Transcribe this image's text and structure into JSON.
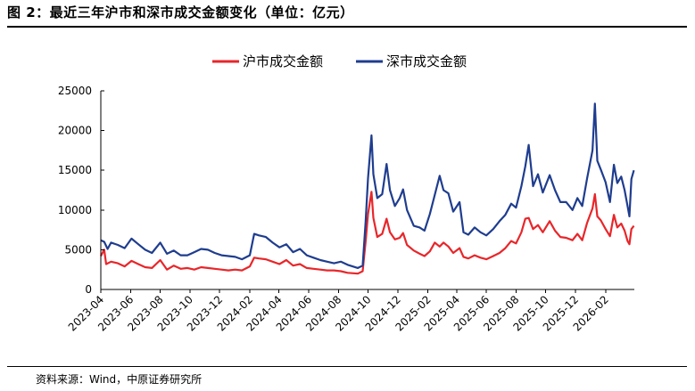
{
  "figure": {
    "title": "图 2：最近三年沪市和深市成交金额变化（单位：亿元）",
    "source": "资料来源：Wind，中原证券研究所"
  },
  "colors": {
    "sh": "#e8262a",
    "sz": "#1f3d8f",
    "axis": "#000000"
  },
  "chart_data": {
    "type": "line",
    "title": "",
    "xlabel": "",
    "ylabel": "",
    "ylim": [
      0,
      25000
    ],
    "yticks": [
      0,
      5000,
      10000,
      15000,
      20000,
      25000
    ],
    "xlim": [
      "2023-04-01",
      "2026-04-01"
    ],
    "x_tick_labels": [
      "2023-04",
      "2023-06",
      "2023-08",
      "2023-10",
      "2023-12",
      "2024-02",
      "2024-04",
      "2024-06",
      "2024-08",
      "2024-10",
      "2024-12",
      "2025-02",
      "2025-04",
      "2025-06",
      "2025-08",
      "2025-10",
      "2025-12",
      "2026-02"
    ],
    "legend": {
      "position": "top-center",
      "entries": [
        "沪市成交金额",
        "深市成交金额"
      ]
    },
    "grid": false,
    "series": [
      {
        "name": "沪市成交金额",
        "color": "#e8262a",
        "points": [
          [
            "2023-04-01",
            4200
          ],
          [
            "2023-04-08",
            5000
          ],
          [
            "2023-04-12",
            3200
          ],
          [
            "2023-04-22",
            3500
          ],
          [
            "2023-05-06",
            3300
          ],
          [
            "2023-05-20",
            2900
          ],
          [
            "2023-06-03",
            3600
          ],
          [
            "2023-06-17",
            3200
          ],
          [
            "2023-07-01",
            2800
          ],
          [
            "2023-07-15",
            2700
          ],
          [
            "2023-08-01",
            3700
          ],
          [
            "2023-08-15",
            2500
          ],
          [
            "2023-08-29",
            3000
          ],
          [
            "2023-09-12",
            2600
          ],
          [
            "2023-09-26",
            2700
          ],
          [
            "2023-10-10",
            2500
          ],
          [
            "2023-10-24",
            2800
          ],
          [
            "2023-11-07",
            2700
          ],
          [
            "2023-11-21",
            2600
          ],
          [
            "2023-12-05",
            2500
          ],
          [
            "2023-12-19",
            2400
          ],
          [
            "2024-01-02",
            2500
          ],
          [
            "2024-01-16",
            2400
          ],
          [
            "2024-02-01",
            2900
          ],
          [
            "2024-02-10",
            4000
          ],
          [
            "2024-02-20",
            3900
          ],
          [
            "2024-03-05",
            3800
          ],
          [
            "2024-03-19",
            3500
          ],
          [
            "2024-04-02",
            3200
          ],
          [
            "2024-04-16",
            3700
          ],
          [
            "2024-04-30",
            3000
          ],
          [
            "2024-05-14",
            3200
          ],
          [
            "2024-05-28",
            2700
          ],
          [
            "2024-06-11",
            2600
          ],
          [
            "2024-06-25",
            2500
          ],
          [
            "2024-07-09",
            2400
          ],
          [
            "2024-07-23",
            2400
          ],
          [
            "2024-08-06",
            2300
          ],
          [
            "2024-08-20",
            2100
          ],
          [
            "2024-09-10",
            2000
          ],
          [
            "2024-09-20",
            2300
          ],
          [
            "2024-09-26",
            6000
          ],
          [
            "2024-10-01",
            9500
          ],
          [
            "2024-10-08",
            12300
          ],
          [
            "2024-10-12",
            9000
          ],
          [
            "2024-10-20",
            6600
          ],
          [
            "2024-10-30",
            7000
          ],
          [
            "2024-11-08",
            8900
          ],
          [
            "2024-11-15",
            7200
          ],
          [
            "2024-11-25",
            6300
          ],
          [
            "2024-12-05",
            6500
          ],
          [
            "2024-12-12",
            7100
          ],
          [
            "2024-12-20",
            5600
          ],
          [
            "2025-01-03",
            4900
          ],
          [
            "2025-01-15",
            4500
          ],
          [
            "2025-01-25",
            4200
          ],
          [
            "2025-02-05",
            4800
          ],
          [
            "2025-02-15",
            5900
          ],
          [
            "2025-02-25",
            5400
          ],
          [
            "2025-03-05",
            5900
          ],
          [
            "2025-03-15",
            5400
          ],
          [
            "2025-03-25",
            4600
          ],
          [
            "2025-04-07",
            5200
          ],
          [
            "2025-04-15",
            4100
          ],
          [
            "2025-04-25",
            3900
          ],
          [
            "2025-05-08",
            4300
          ],
          [
            "2025-05-20",
            4000
          ],
          [
            "2025-06-01",
            3800
          ],
          [
            "2025-06-15",
            4200
          ],
          [
            "2025-06-28",
            4600
          ],
          [
            "2025-07-10",
            5200
          ],
          [
            "2025-07-22",
            6100
          ],
          [
            "2025-08-01",
            5800
          ],
          [
            "2025-08-12",
            7200
          ],
          [
            "2025-08-20",
            8900
          ],
          [
            "2025-08-27",
            9000
          ],
          [
            "2025-09-05",
            7600
          ],
          [
            "2025-09-15",
            8100
          ],
          [
            "2025-09-25",
            7200
          ],
          [
            "2025-10-09",
            8600
          ],
          [
            "2025-10-20",
            7400
          ],
          [
            "2025-10-31",
            6600
          ],
          [
            "2025-11-12",
            6500
          ],
          [
            "2025-11-25",
            6200
          ],
          [
            "2025-12-05",
            7000
          ],
          [
            "2025-12-15",
            6200
          ],
          [
            "2025-12-25",
            8400
          ],
          [
            "2026-01-05",
            10200
          ],
          [
            "2026-01-10",
            12000
          ],
          [
            "2026-01-15",
            9200
          ],
          [
            "2026-01-22",
            8700
          ],
          [
            "2026-02-01",
            7600
          ],
          [
            "2026-02-10",
            6700
          ],
          [
            "2026-02-18",
            9400
          ],
          [
            "2026-02-25",
            7800
          ],
          [
            "2026-03-05",
            8300
          ],
          [
            "2026-03-12",
            7400
          ],
          [
            "2026-03-18",
            6100
          ],
          [
            "2026-03-22",
            5700
          ],
          [
            "2026-03-26",
            7600
          ],
          [
            "2026-03-31",
            8000
          ]
        ]
      },
      {
        "name": "深市成交金额",
        "color": "#1f3d8f",
        "points": [
          [
            "2023-04-01",
            6200
          ],
          [
            "2023-04-08",
            6000
          ],
          [
            "2023-04-15",
            5100
          ],
          [
            "2023-04-22",
            5900
          ],
          [
            "2023-05-06",
            5600
          ],
          [
            "2023-05-20",
            5200
          ],
          [
            "2023-06-03",
            6400
          ],
          [
            "2023-06-17",
            5700
          ],
          [
            "2023-07-01",
            5000
          ],
          [
            "2023-07-15",
            4600
          ],
          [
            "2023-08-01",
            5900
          ],
          [
            "2023-08-15",
            4500
          ],
          [
            "2023-08-29",
            4900
          ],
          [
            "2023-09-12",
            4300
          ],
          [
            "2023-09-26",
            4300
          ],
          [
            "2023-10-10",
            4700
          ],
          [
            "2023-10-24",
            5100
          ],
          [
            "2023-11-07",
            5000
          ],
          [
            "2023-11-21",
            4600
          ],
          [
            "2023-12-05",
            4300
          ],
          [
            "2023-12-19",
            4200
          ],
          [
            "2024-01-02",
            4100
          ],
          [
            "2024-01-16",
            3800
          ],
          [
            "2024-02-01",
            4300
          ],
          [
            "2024-02-10",
            7000
          ],
          [
            "2024-02-20",
            6800
          ],
          [
            "2024-03-05",
            6600
          ],
          [
            "2024-03-19",
            5900
          ],
          [
            "2024-04-02",
            5300
          ],
          [
            "2024-04-16",
            5700
          ],
          [
            "2024-04-30",
            4700
          ],
          [
            "2024-05-14",
            5100
          ],
          [
            "2024-05-28",
            4300
          ],
          [
            "2024-06-11",
            4000
          ],
          [
            "2024-06-25",
            3700
          ],
          [
            "2024-07-09",
            3500
          ],
          [
            "2024-07-23",
            3300
          ],
          [
            "2024-08-06",
            3500
          ],
          [
            "2024-08-20",
            3100
          ],
          [
            "2024-09-10",
            2700
          ],
          [
            "2024-09-20",
            3000
          ],
          [
            "2024-09-26",
            8500
          ],
          [
            "2024-10-01",
            14000
          ],
          [
            "2024-10-08",
            19400
          ],
          [
            "2024-10-12",
            14500
          ],
          [
            "2024-10-20",
            11500
          ],
          [
            "2024-10-30",
            12000
          ],
          [
            "2024-11-08",
            15800
          ],
          [
            "2024-11-15",
            12500
          ],
          [
            "2024-11-25",
            10500
          ],
          [
            "2024-12-05",
            11500
          ],
          [
            "2024-12-12",
            12600
          ],
          [
            "2024-12-20",
            10000
          ],
          [
            "2025-01-03",
            8000
          ],
          [
            "2025-01-15",
            7800
          ],
          [
            "2025-01-25",
            7400
          ],
          [
            "2025-02-05",
            9500
          ],
          [
            "2025-02-15",
            11900
          ],
          [
            "2025-02-25",
            14300
          ],
          [
            "2025-03-05",
            12500
          ],
          [
            "2025-03-15",
            12100
          ],
          [
            "2025-03-25",
            9800
          ],
          [
            "2025-04-07",
            11000
          ],
          [
            "2025-04-15",
            7200
          ],
          [
            "2025-04-25",
            6900
          ],
          [
            "2025-05-08",
            7800
          ],
          [
            "2025-05-20",
            7200
          ],
          [
            "2025-06-01",
            6800
          ],
          [
            "2025-06-15",
            7600
          ],
          [
            "2025-06-28",
            8600
          ],
          [
            "2025-07-10",
            9400
          ],
          [
            "2025-07-22",
            10800
          ],
          [
            "2025-08-01",
            10300
          ],
          [
            "2025-08-12",
            13000
          ],
          [
            "2025-08-20",
            15500
          ],
          [
            "2025-08-27",
            18200
          ],
          [
            "2025-09-05",
            13000
          ],
          [
            "2025-09-15",
            14500
          ],
          [
            "2025-09-25",
            12200
          ],
          [
            "2025-10-09",
            14400
          ],
          [
            "2025-10-20",
            12500
          ],
          [
            "2025-10-31",
            11000
          ],
          [
            "2025-11-12",
            11000
          ],
          [
            "2025-11-25",
            10000
          ],
          [
            "2025-12-05",
            11500
          ],
          [
            "2025-12-15",
            10500
          ],
          [
            "2025-12-25",
            14000
          ],
          [
            "2026-01-05",
            17500
          ],
          [
            "2026-01-10",
            23400
          ],
          [
            "2026-01-15",
            16200
          ],
          [
            "2026-01-22",
            15100
          ],
          [
            "2026-02-01",
            13500
          ],
          [
            "2026-02-10",
            11000
          ],
          [
            "2026-02-18",
            15700
          ],
          [
            "2026-02-25",
            13400
          ],
          [
            "2026-03-05",
            14200
          ],
          [
            "2026-03-12",
            12500
          ],
          [
            "2026-03-18",
            10500
          ],
          [
            "2026-03-22",
            9200
          ],
          [
            "2026-03-26",
            13900
          ],
          [
            "2026-03-31",
            15000
          ]
        ]
      }
    ]
  }
}
